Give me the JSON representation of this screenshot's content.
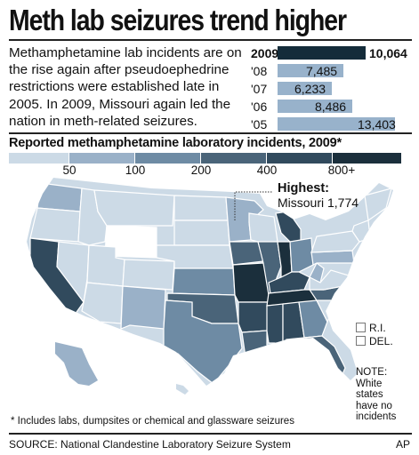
{
  "title": "Meth lab seizures trend higher",
  "intro_lines": [
    "Methamphetamine lab incidents are on",
    "the rise again after pseudoephedrine",
    "restrictions were established late in",
    "2005. In 2009, Missouri again led the",
    "nation in meth-related seizures."
  ],
  "trend": [
    {
      "year": "2009",
      "value": 10064,
      "label": "10,064",
      "highlight": true
    },
    {
      "year": "'08",
      "value": 7485,
      "label": "7,485",
      "highlight": false
    },
    {
      "year": "'07",
      "value": 6233,
      "label": "6,233",
      "highlight": false
    },
    {
      "year": "'06",
      "value": 8486,
      "label": "8,486",
      "highlight": false
    },
    {
      "year": "'05",
      "value": 13403,
      "label": "13,403",
      "highlight": false
    }
  ],
  "legend": {
    "title": "Reported methamphetamine laboratory incidents, 2009*",
    "colors": [
      "#ccdae6",
      "#9ab1c8",
      "#6e8ba4",
      "#4a6479",
      "#314a5d",
      "#1b2f3c"
    ],
    "labels": [
      "50",
      "100",
      "200",
      "400",
      "800+"
    ]
  },
  "highest": {
    "label": "Highest:",
    "value": "Missouri 1,774"
  },
  "small_states": [
    "R.I.",
    "DEL."
  ],
  "note_lines": [
    "NOTE:",
    "White",
    "states",
    "have no",
    "incidents"
  ],
  "footnote": "* Includes labs, dumpsites or chemical and glassware seizures",
  "source": "SOURCE: National Clandestine Laboratory Seizure System",
  "credit": "AP",
  "colors": {
    "highlight_bar": "#142c3a",
    "bar": "#98b2cb",
    "state_border": "#ffffff"
  }
}
